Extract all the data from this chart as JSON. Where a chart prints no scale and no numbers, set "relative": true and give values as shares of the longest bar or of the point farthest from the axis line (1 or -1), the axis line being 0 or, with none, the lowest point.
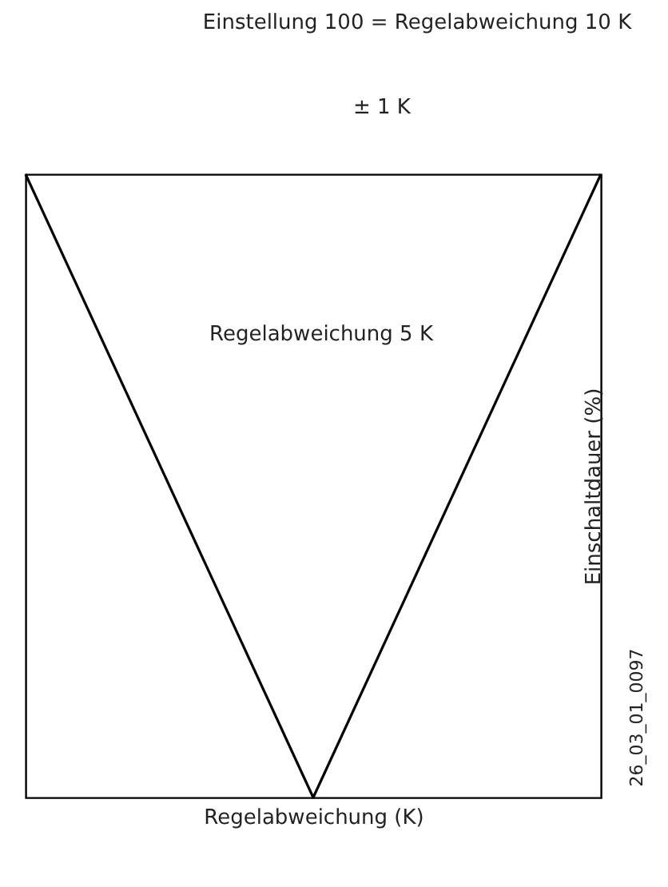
{
  "chart_data": {
    "type": "line",
    "relative": true,
    "xlabel": "Regelabweichung (K)",
    "ylabel": "Einschaltdauer (%)",
    "categories": [
      null,
      null,
      null
    ],
    "series": [
      {
        "color": "#000000",
        "values": [
          1,
          0,
          1
        ]
      }
    ],
    "marker": "none",
    "line_style": "solid",
    "annotations": [
      "Einstellung 100 = Regelabweichung 10 K",
      "± 1 K",
      "Regelabweichung 5 K",
      "26_03_01_0097"
    ]
  }
}
